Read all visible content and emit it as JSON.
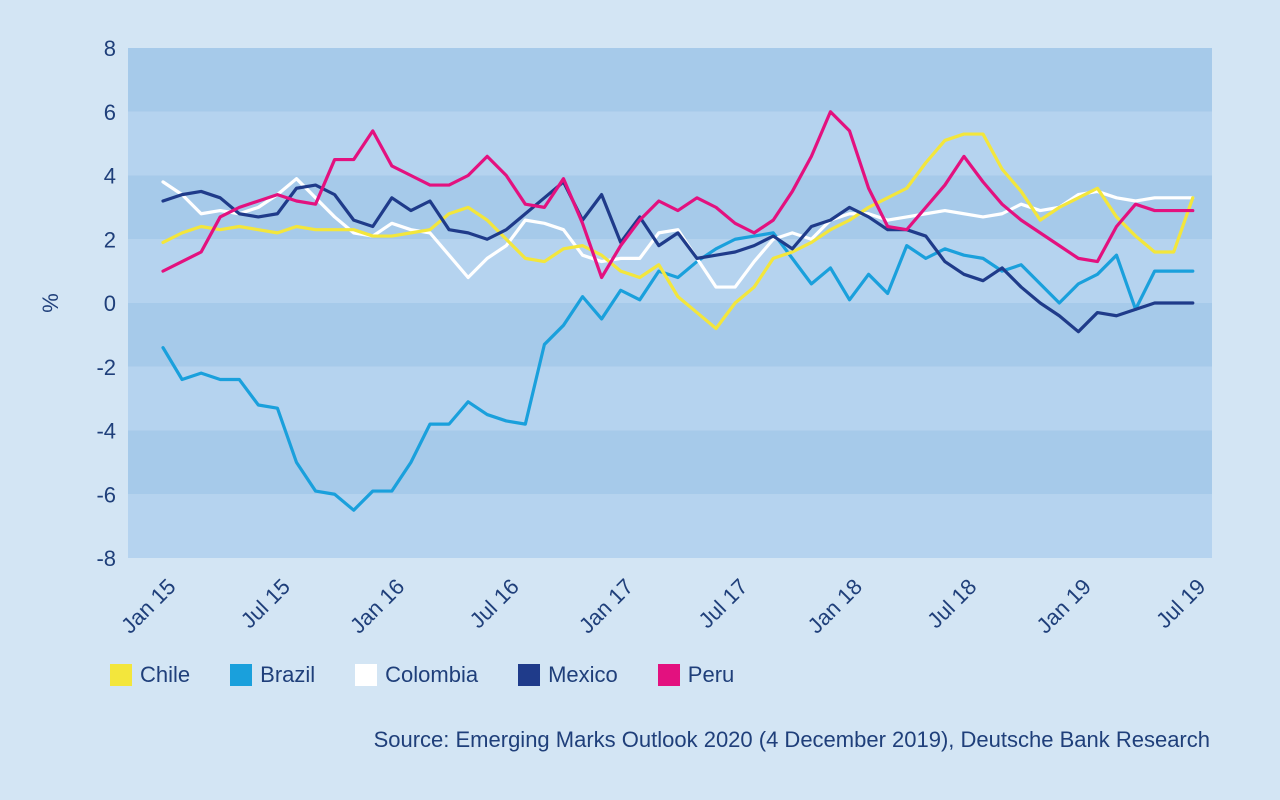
{
  "chart_data": {
    "type": "line",
    "ylabel": "%",
    "xlabel": "",
    "ylim": [
      -8,
      8
    ],
    "yticks": [
      -8,
      -6,
      -4,
      -2,
      0,
      2,
      4,
      6,
      8
    ],
    "xtick_labels": [
      "Jan 15",
      "Jul 15",
      "Jan 16",
      "Jul 16",
      "Jan 17",
      "Jul 17",
      "Jan 18",
      "Jul 18",
      "Jan 19",
      "Jul 19"
    ],
    "x_months_from_jan15": [
      0,
      1,
      2,
      3,
      4,
      5,
      6,
      7,
      8,
      9,
      10,
      11,
      12,
      13,
      14,
      15,
      16,
      17,
      18,
      19,
      20,
      21,
      22,
      23,
      24,
      25,
      26,
      27,
      28,
      29,
      30,
      31,
      32,
      33,
      34,
      35,
      36,
      37,
      38,
      39,
      40,
      41,
      42,
      43,
      44,
      45,
      46,
      47,
      48,
      49,
      50,
      51,
      52,
      53,
      54
    ],
    "series": [
      {
        "name": "Chile",
        "color": "#f3e63c",
        "values": [
          1.9,
          2.2,
          2.4,
          2.3,
          2.4,
          2.3,
          2.2,
          2.4,
          2.3,
          2.3,
          2.3,
          2.1,
          2.1,
          2.2,
          2.3,
          2.8,
          3.0,
          2.6,
          2.0,
          1.4,
          1.3,
          1.7,
          1.8,
          1.5,
          1.0,
          0.8,
          1.2,
          0.2,
          -0.3,
          -0.8,
          0.0,
          0.5,
          1.4,
          1.6,
          1.9,
          2.3,
          2.6,
          3.0,
          3.3,
          3.6,
          4.4,
          5.1,
          5.3,
          5.3,
          4.2,
          3.5,
          2.6,
          3.0,
          3.3,
          3.6,
          2.7,
          2.1,
          1.6,
          1.6,
          3.3
        ]
      },
      {
        "name": "Brazil",
        "color": "#1aa0dc",
        "values": [
          -1.4,
          -2.4,
          -2.2,
          -2.4,
          -2.4,
          -3.2,
          -3.3,
          -5.0,
          -5.9,
          -6.0,
          -6.5,
          -5.9,
          -5.9,
          -5.0,
          -3.8,
          -3.8,
          -3.1,
          -3.5,
          -3.7,
          -3.8,
          -1.3,
          -0.7,
          0.2,
          -0.5,
          0.4,
          0.1,
          1.0,
          0.8,
          1.3,
          1.7,
          2.0,
          2.1,
          2.2,
          1.4,
          0.6,
          1.1,
          0.1,
          0.9,
          0.3,
          1.8,
          1.4,
          1.7,
          1.5,
          1.4,
          1.0,
          1.2,
          0.6,
          0.0,
          0.6,
          0.9,
          1.5,
          -0.2,
          1.0,
          1.0,
          1.0
        ]
      },
      {
        "name": "Colombia",
        "color": "#ffffff",
        "values": [
          3.8,
          3.4,
          2.8,
          2.9,
          2.8,
          3.0,
          3.4,
          3.9,
          3.3,
          2.7,
          2.2,
          2.1,
          2.5,
          2.3,
          2.2,
          1.5,
          0.8,
          1.4,
          1.8,
          2.6,
          2.5,
          2.3,
          1.5,
          1.3,
          1.4,
          1.4,
          2.2,
          2.3,
          1.4,
          0.5,
          0.5,
          1.3,
          2.0,
          2.2,
          2.0,
          2.6,
          2.8,
          2.8,
          2.6,
          2.7,
          2.8,
          2.9,
          2.8,
          2.7,
          2.8,
          3.1,
          2.9,
          3.0,
          3.4,
          3.5,
          3.3,
          3.2,
          3.3,
          3.3,
          3.3
        ]
      },
      {
        "name": "Mexico",
        "color": "#1f3b8a",
        "values": [
          3.2,
          3.4,
          3.5,
          3.3,
          2.8,
          2.7,
          2.8,
          3.6,
          3.7,
          3.4,
          2.6,
          2.4,
          3.3,
          2.9,
          3.2,
          2.3,
          2.2,
          2.0,
          2.3,
          2.8,
          3.3,
          3.8,
          2.6,
          3.4,
          1.9,
          2.7,
          1.8,
          2.2,
          1.4,
          1.5,
          1.6,
          1.8,
          2.1,
          1.7,
          2.4,
          2.6,
          3.0,
          2.7,
          2.3,
          2.3,
          2.1,
          1.3,
          0.9,
          0.7,
          1.1,
          0.5,
          0.0,
          -0.4,
          -0.9,
          -0.3,
          -0.4,
          -0.2,
          0.0,
          0.0,
          0.0
        ]
      },
      {
        "name": "Peru",
        "color": "#e3117f",
        "values": [
          1.0,
          1.3,
          1.6,
          2.7,
          3.0,
          3.2,
          3.4,
          3.2,
          3.1,
          4.5,
          4.5,
          5.4,
          4.3,
          4.0,
          3.7,
          3.7,
          4.0,
          4.6,
          4.0,
          3.1,
          3.0,
          3.9,
          2.5,
          0.8,
          1.8,
          2.6,
          3.2,
          2.9,
          3.3,
          3.0,
          2.5,
          2.2,
          2.6,
          3.5,
          4.6,
          6.0,
          5.4,
          3.6,
          2.4,
          2.3,
          3.0,
          3.7,
          4.6,
          3.8,
          3.1,
          2.6,
          2.2,
          1.8,
          1.4,
          1.3,
          2.4,
          3.1,
          2.9,
          2.9,
          2.9
        ]
      }
    ]
  },
  "source_text": "Source: Emerging Marks Outlook 2020 (4 December 2019), Deutsche Bank Research"
}
